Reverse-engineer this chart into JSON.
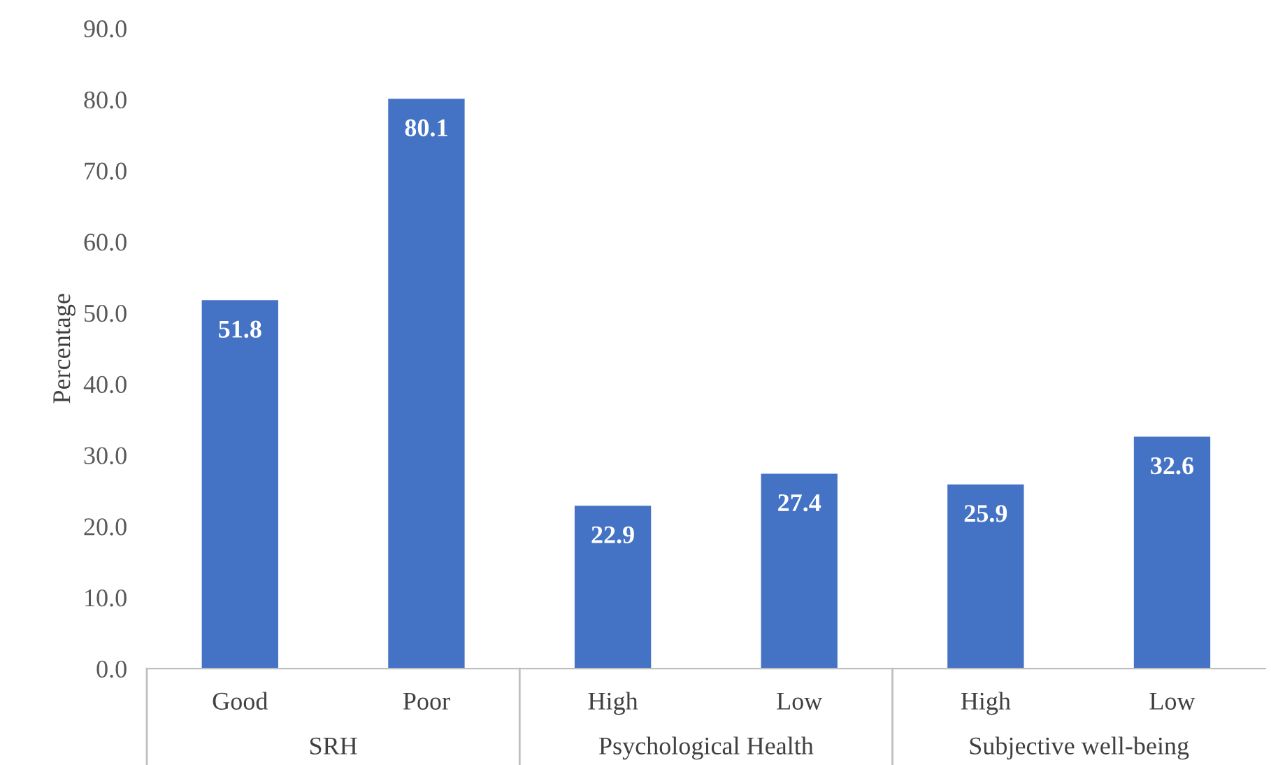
{
  "chart_data": {
    "type": "bar",
    "ylabel": "Percentage",
    "categories": [
      "Good",
      "Poor",
      "High",
      "Low",
      "High",
      "Low"
    ],
    "values": [
      51.8,
      80.1,
      22.9,
      27.4,
      25.9,
      32.6
    ],
    "color": "#4472c4",
    "ylim": [
      0,
      90
    ],
    "yticks": [
      {
        "value": 0,
        "label": "0.0"
      },
      {
        "value": 10,
        "label": "10.0"
      },
      {
        "value": 20,
        "label": "20.0"
      },
      {
        "value": 30,
        "label": "30.0"
      },
      {
        "value": 40,
        "label": "40.0"
      },
      {
        "value": 50,
        "label": "50.0"
      },
      {
        "value": 60,
        "label": "60.0"
      },
      {
        "value": 70,
        "label": "70.0"
      },
      {
        "value": 80,
        "label": "80.0"
      },
      {
        "value": 90,
        "label": "90.0"
      }
    ],
    "data_labels": true,
    "grid": false,
    "annotations": [
      "SRH",
      "Psychological Health",
      "Subjective well-being"
    ]
  }
}
